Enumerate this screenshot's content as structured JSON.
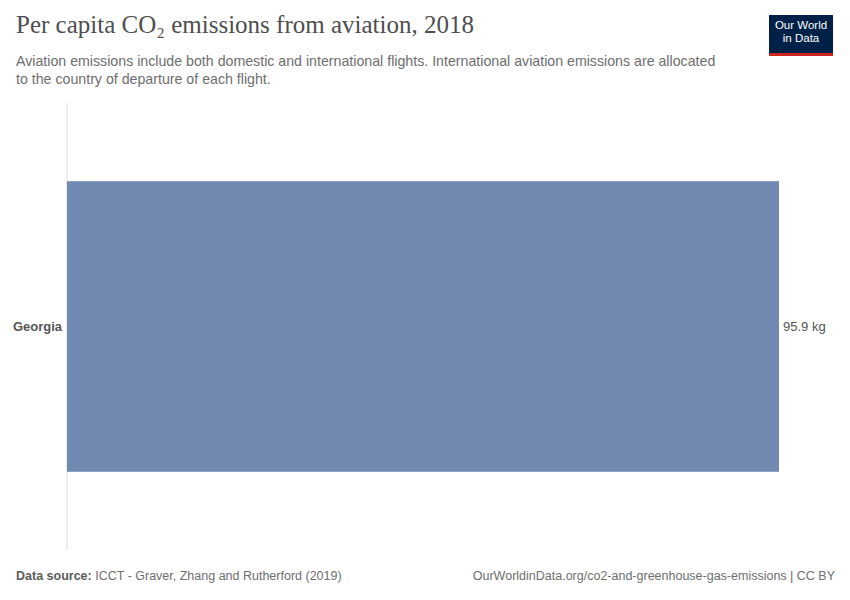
{
  "chart_data": {
    "type": "bar",
    "orientation": "horizontal",
    "title": "Per capita CO₂ emissions from aviation, 2018",
    "subtitle": "Aviation emissions include both domestic and international flights. International aviation emissions are allocated to the country of departure of each flight.",
    "categories": [
      "Georgia"
    ],
    "values": [
      95.9
    ],
    "value_labels": [
      "95.9 kg"
    ],
    "data_labels": true,
    "color": "#7188b1",
    "xlim": [
      0,
      95.9
    ],
    "tick_labels": "y",
    "grid": false,
    "source_label": "Data source:",
    "source": "ICCT - Graver, Zhang and Rutherford (2019)",
    "url": "OurWorldinData.org/co2-and-greenhouse-gas-emissions | CC BY",
    "logo": [
      "Our World",
      "in Data"
    ]
  }
}
